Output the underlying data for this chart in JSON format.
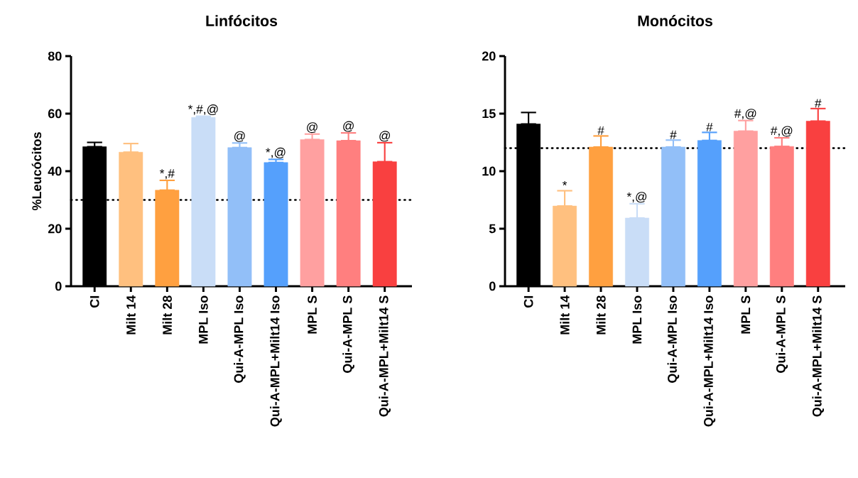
{
  "chart_data": [
    {
      "type": "bar",
      "title": "Linfócitos",
      "ylabel": "%Leucócitos",
      "categories": [
        "CI",
        "Milt 14",
        "Milt 28",
        "MPL Iso",
        "Qui-A-MPL Iso",
        "Qui-A-MPL+Milt14 Iso",
        "MPL S",
        "Qui-A-MPL S",
        "Qui-A-MPL+Milt14 S"
      ],
      "colors": [
        "#000000",
        "#ffc07f",
        "#ffa040",
        "#c9ddf7",
        "#92bff8",
        "#55a0fc",
        "#ffa0a0",
        "#ff7f7f",
        "#f94040"
      ],
      "values": [
        48.5,
        46.6,
        33.4,
        58.7,
        48.2,
        43.0,
        51.0,
        50.6,
        43.3
      ],
      "errors": [
        [
          48.5,
          50.0
        ],
        [
          46.6,
          49.6
        ],
        [
          33.4,
          36.8
        ],
        [
          58.7,
          59.1
        ],
        [
          48.2,
          49.8
        ],
        [
          43.0,
          44.1
        ],
        [
          51.0,
          52.9
        ],
        [
          50.6,
          53.3
        ],
        [
          43.3,
          49.9
        ]
      ],
      "ylim": [
        0,
        80
      ],
      "yticks": [
        0,
        20,
        40,
        60,
        80
      ],
      "ref_lines": [
        {
          "axis": "y",
          "value": 30,
          "line_style": "dotted",
          "color": "#000000"
        }
      ],
      "annotations": [
        {
          "text": "*,#",
          "x": "Milt 28",
          "y": 36.8
        },
        {
          "text": "*,#,@",
          "x": "MPL Iso",
          "y": 59.1
        },
        {
          "text": "@",
          "x": "Qui-A-MPL Iso",
          "y": 49.8
        },
        {
          "text": "*,@",
          "x": "Qui-A-MPL+Milt14 Iso",
          "y": 44.1
        },
        {
          "text": "@",
          "x": "MPL S",
          "y": 52.9
        },
        {
          "text": "@",
          "x": "Qui-A-MPL S",
          "y": 53.3
        },
        {
          "text": "@",
          "x": "Qui-A-MPL+Milt14 S",
          "y": 49.9
        }
      ]
    },
    {
      "type": "bar",
      "title": "Monócitos",
      "categories": [
        "CI",
        "Milt 14",
        "Milt 28",
        "MPL Iso",
        "Qui-A-MPL Iso",
        "Qui-A-MPL+Milt14 Iso",
        "MPL S",
        "Qui-A-MPL S",
        "Qui-A-MPL+Milt14 S"
      ],
      "colors": [
        "#000000",
        "#ffc07f",
        "#ffa040",
        "#c9ddf7",
        "#92bff8",
        "#55a0fc",
        "#ffa0a0",
        "#ff7f7f",
        "#f94040"
      ],
      "values": [
        14.1,
        6.97,
        12.1,
        5.93,
        12.1,
        12.67,
        13.48,
        12.15,
        14.35
      ],
      "errors": [
        [
          14.1,
          15.1
        ],
        [
          6.97,
          8.3
        ],
        [
          12.1,
          13.06
        ],
        [
          5.93,
          7.17
        ],
        [
          12.1,
          12.7
        ],
        [
          12.67,
          13.37
        ],
        [
          13.48,
          14.4
        ],
        [
          12.15,
          12.9
        ],
        [
          14.35,
          15.44
        ]
      ],
      "ylim": [
        0,
        20
      ],
      "yticks": [
        0,
        5,
        10,
        15,
        20
      ],
      "ref_lines": [
        {
          "axis": "y",
          "value": 12,
          "line_style": "dotted",
          "color": "#000000"
        }
      ],
      "annotations": [
        {
          "text": "*",
          "x": "Milt 14",
          "y": 8.3
        },
        {
          "text": "#",
          "x": "Milt 28",
          "y": 13.06
        },
        {
          "text": "*,@",
          "x": "MPL Iso",
          "y": 7.17
        },
        {
          "text": "#",
          "x": "Qui-A-MPL Iso",
          "y": 12.7
        },
        {
          "text": "#",
          "x": "Qui-A-MPL+Milt14 Iso",
          "y": 13.37
        },
        {
          "text": "#,@",
          "x": "MPL S",
          "y": 14.4
        },
        {
          "text": "#,@",
          "x": "Qui-A-MPL S",
          "y": 12.9
        },
        {
          "text": "#",
          "x": "Qui-A-MPL+Milt14 S",
          "y": 15.44
        }
      ]
    }
  ]
}
